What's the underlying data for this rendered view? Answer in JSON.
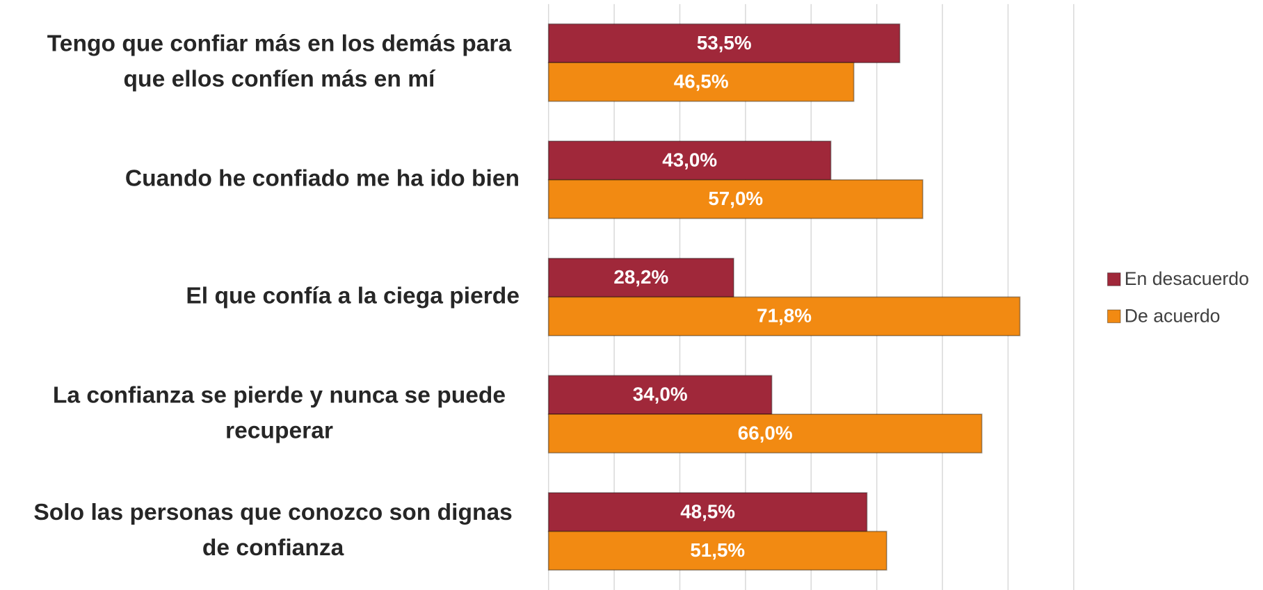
{
  "chart_data": {
    "type": "bar",
    "orientation": "horizontal",
    "categories": [
      "Tengo que confiar más en los demás para que ellos confíen más en mí",
      "Cuando he confiado me ha ido bien",
      "El que confía a la ciega pierde",
      "La confianza se pierde y nunca se puede recuperar",
      "Solo las personas que conozco son dignas de confianza"
    ],
    "series": [
      {
        "name": "En desacuerdo",
        "color": "#a0283a",
        "values": [
          53.5,
          43.0,
          28.2,
          34.0,
          48.5
        ],
        "value_labels": [
          "53,5%",
          "43,0%",
          "28,2%",
          "34,0%",
          "48,5%"
        ]
      },
      {
        "name": "De acuerdo",
        "color": "#f28a12",
        "values": [
          46.5,
          57.0,
          71.8,
          66.0,
          51.5
        ],
        "value_labels": [
          "46,5%",
          "57,0%",
          "71,8%",
          "66,0%",
          "51,5%"
        ]
      }
    ],
    "xlim": [
      0,
      80
    ],
    "xticks": [
      0,
      10,
      20,
      30,
      40,
      50,
      60,
      70,
      80
    ],
    "grid": true,
    "legend": "right"
  }
}
